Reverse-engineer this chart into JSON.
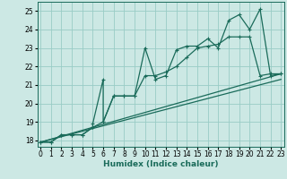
{
  "xlabel": "Humidex (Indice chaleur)",
  "x_ticks": [
    0,
    1,
    2,
    3,
    4,
    5,
    6,
    7,
    8,
    9,
    10,
    11,
    12,
    13,
    14,
    15,
    16,
    17,
    18,
    19,
    20,
    21,
    22,
    23
  ],
  "y_ticks": [
    18,
    19,
    20,
    21,
    22,
    23,
    24,
    25
  ],
  "xlim": [
    -0.3,
    23.3
  ],
  "ylim": [
    17.65,
    25.5
  ],
  "bg_color": "#cce8e4",
  "grid_color": "#99ccc6",
  "line_color": "#1a6b5a",
  "series1_x": [
    0,
    1,
    2,
    3,
    4,
    5,
    5,
    6,
    6,
    7,
    8,
    9,
    10,
    11,
    12,
    13,
    14,
    15,
    16,
    17,
    18,
    19,
    20,
    21,
    22,
    23
  ],
  "series1_y": [
    17.9,
    17.9,
    18.3,
    18.3,
    18.3,
    18.7,
    18.9,
    21.3,
    19.0,
    20.4,
    20.4,
    20.4,
    23.0,
    21.3,
    21.5,
    22.9,
    23.1,
    23.1,
    23.5,
    23.0,
    24.5,
    24.8,
    24.0,
    25.1,
    21.5,
    21.6
  ],
  "series2_x": [
    0,
    1,
    2,
    3,
    4,
    5,
    6,
    7,
    8,
    9,
    10,
    11,
    12,
    13,
    14,
    15,
    16,
    17,
    18,
    19,
    20,
    21,
    22,
    23
  ],
  "series2_y": [
    17.9,
    17.9,
    18.3,
    18.3,
    18.3,
    18.7,
    19.0,
    20.4,
    20.4,
    20.4,
    21.5,
    21.5,
    21.7,
    22.0,
    22.5,
    23.0,
    23.1,
    23.2,
    23.6,
    23.6,
    23.6,
    21.5,
    21.6,
    21.6
  ],
  "series3_x": [
    0,
    23
  ],
  "series3_y": [
    17.9,
    21.3
  ],
  "series4_x": [
    0,
    23
  ],
  "series4_y": [
    17.9,
    21.6
  ]
}
